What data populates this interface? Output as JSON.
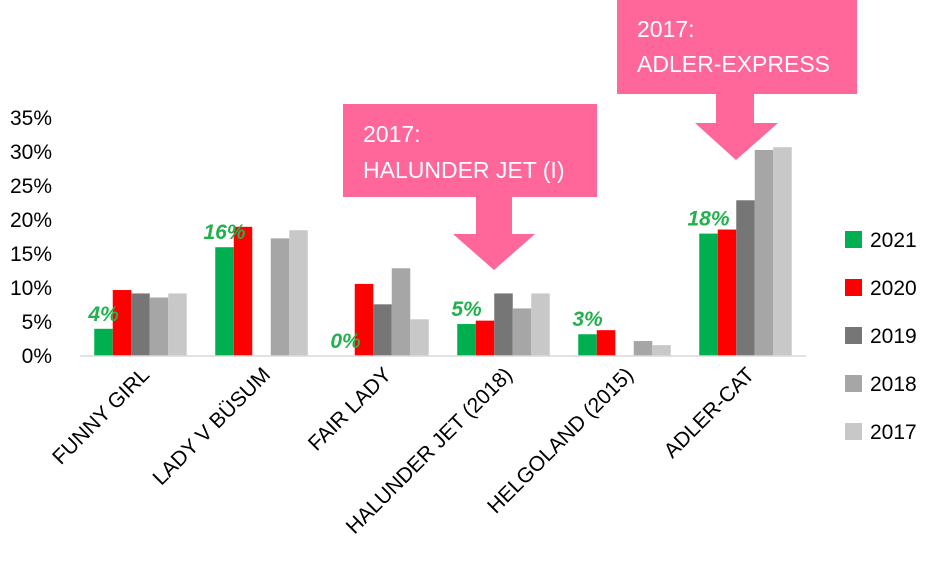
{
  "chart_data": {
    "type": "bar",
    "categories": [
      "FUNNY GIRL",
      "LADY V BÜSUM",
      "FAIR LADY",
      "HALUNDER JET (2018)",
      "HELGOLAND (2015)",
      "ADLER-CAT"
    ],
    "series": [
      {
        "name": "2021",
        "color": "#00b050",
        "values": [
          4,
          16,
          0,
          4.7,
          3.2,
          18
        ]
      },
      {
        "name": "2020",
        "color": "#ff0000",
        "values": [
          9.7,
          19,
          10.6,
          5.2,
          3.8,
          18.6
        ]
      },
      {
        "name": "2019",
        "color": "#767676",
        "values": [
          9.2,
          null,
          7.6,
          9.2,
          null,
          22.9
        ]
      },
      {
        "name": "2018",
        "color": "#a6a6a6",
        "values": [
          8.6,
          17.3,
          12.9,
          7,
          2.2,
          30.3
        ]
      },
      {
        "name": "2017",
        "color": "#c8c8c8",
        "values": [
          9.2,
          18.5,
          5.4,
          9.2,
          1.6,
          30.7
        ]
      }
    ],
    "yticks": [
      "0%",
      "5%",
      "10%",
      "15%",
      "20%",
      "25%",
      "30%",
      "35%"
    ],
    "ylim": [
      0,
      35
    ],
    "legend_position": "right",
    "data_labels_2021": [
      "4%",
      "16%",
      "0%",
      "5%",
      "3%",
      "18%"
    ],
    "annotations": [
      {
        "line1": "2017:",
        "line2": "HALUNDER JET (I)"
      },
      {
        "line1": "2017:",
        "line2": "ADLER-EXPRESS"
      }
    ],
    "annotation_color": "#ff6699",
    "label_color": "#22b14c"
  }
}
